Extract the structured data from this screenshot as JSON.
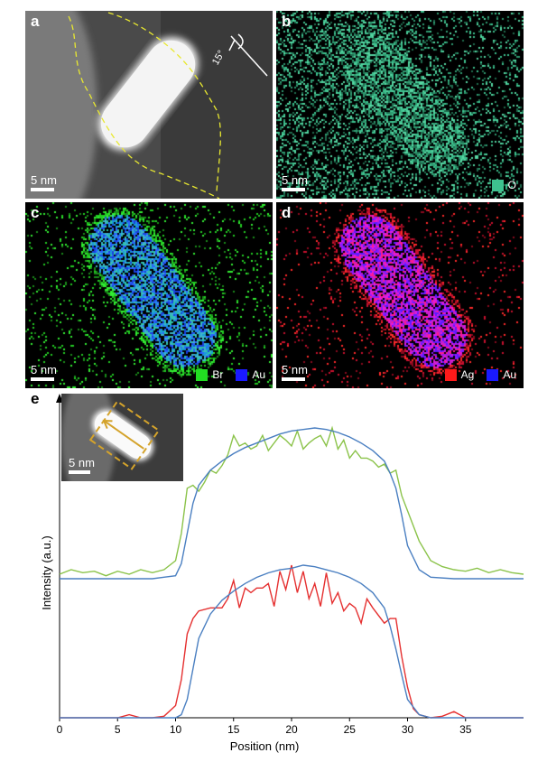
{
  "panels": [
    {
      "id": "a",
      "label": "a",
      "scale": "5 nm",
      "angle": "15°",
      "legend": []
    },
    {
      "id": "b",
      "label": "b",
      "scale": "5 nm",
      "legend": [
        {
          "name": "O",
          "color": "#3ec28f"
        }
      ]
    },
    {
      "id": "c",
      "label": "c",
      "scale": "5 nm",
      "legend": [
        {
          "name": "Br",
          "color": "#22dd22"
        },
        {
          "name": "Au",
          "color": "#1a1aff"
        }
      ]
    },
    {
      "id": "d",
      "label": "d",
      "scale": "5 nm",
      "legend": [
        {
          "name": "Ag",
          "color": "#ff1a1a"
        },
        {
          "name": "Au",
          "color": "#1a1aff"
        }
      ]
    }
  ],
  "panel_e": {
    "label": "e",
    "inset_scale": "5 nm"
  },
  "chart_data": {
    "type": "line",
    "xlabel": "Position (nm)",
    "ylabel": "Intensity (a.u.)",
    "xlim": [
      0,
      40
    ],
    "xticks": [
      0,
      5,
      10,
      15,
      20,
      25,
      30,
      35
    ],
    "series": [
      {
        "color": "#8bc34a",
        "offset": "upper",
        "x": [
          0,
          1,
          2,
          3,
          4,
          5,
          6,
          7,
          8,
          9,
          10,
          10.5,
          11,
          11.5,
          12,
          12.5,
          13,
          13.5,
          14,
          14.5,
          15,
          15.5,
          16,
          16.5,
          17,
          17.5,
          18,
          18.5,
          19,
          19.5,
          20,
          20.5,
          21,
          21.5,
          22,
          22.5,
          23,
          23.5,
          24,
          24.5,
          25,
          25.5,
          26,
          26.5,
          27,
          27.5,
          28,
          28.5,
          29,
          29.5,
          30,
          31,
          32,
          33,
          34,
          35,
          36,
          37,
          38,
          39,
          40
        ],
        "y": [
          0.03,
          0.06,
          0.04,
          0.05,
          0.02,
          0.05,
          0.03,
          0.06,
          0.04,
          0.06,
          0.12,
          0.3,
          0.6,
          0.62,
          0.58,
          0.64,
          0.72,
          0.7,
          0.75,
          0.82,
          0.95,
          0.88,
          0.9,
          0.86,
          0.88,
          0.95,
          0.85,
          0.9,
          0.95,
          0.92,
          0.88,
          0.98,
          0.86,
          0.9,
          0.93,
          0.95,
          0.88,
          1.0,
          0.86,
          0.92,
          0.8,
          0.85,
          0.8,
          0.8,
          0.78,
          0.74,
          0.76,
          0.7,
          0.72,
          0.55,
          0.45,
          0.25,
          0.12,
          0.08,
          0.06,
          0.05,
          0.07,
          0.04,
          0.06,
          0.04,
          0.03
        ]
      },
      {
        "color": "#4a7fc1",
        "offset": "upper",
        "x": [
          0,
          2,
          4,
          6,
          8,
          9,
          10,
          10.5,
          11,
          11.5,
          12,
          13,
          14,
          15,
          16,
          17,
          18,
          19,
          20,
          21,
          22,
          23,
          24,
          25,
          26,
          27,
          28,
          28.5,
          29,
          29.5,
          30,
          31,
          32,
          34,
          36,
          38,
          40
        ],
        "y": [
          0.0,
          0.0,
          0.0,
          0.0,
          0.0,
          0.01,
          0.02,
          0.1,
          0.3,
          0.5,
          0.62,
          0.72,
          0.78,
          0.83,
          0.87,
          0.9,
          0.93,
          0.96,
          0.98,
          0.99,
          1.0,
          0.99,
          0.97,
          0.94,
          0.9,
          0.85,
          0.78,
          0.7,
          0.6,
          0.42,
          0.22,
          0.06,
          0.01,
          0.0,
          0.0,
          0.0,
          0.0
        ]
      },
      {
        "color": "#e53030",
        "offset": "lower",
        "x": [
          0,
          2,
          4,
          5,
          6,
          7,
          8,
          9,
          10,
          10.5,
          11,
          11.5,
          12,
          13,
          14,
          14.5,
          15,
          15.5,
          16,
          16.5,
          17,
          17.5,
          18,
          18.5,
          19,
          19.5,
          20,
          20.5,
          21,
          21.5,
          22,
          22.5,
          23,
          23.5,
          24,
          24.5,
          25,
          25.5,
          26,
          26.5,
          27,
          28,
          28.5,
          29,
          29.5,
          30,
          30.5,
          31,
          32,
          33,
          34,
          35,
          36,
          38,
          40
        ],
        "y": [
          0.0,
          0.0,
          0.0,
          0.0,
          0.02,
          0.0,
          0.0,
          0.01,
          0.08,
          0.25,
          0.55,
          0.65,
          0.7,
          0.72,
          0.72,
          0.78,
          0.9,
          0.72,
          0.85,
          0.82,
          0.85,
          0.85,
          0.88,
          0.73,
          0.96,
          0.84,
          1.0,
          0.82,
          0.96,
          0.78,
          0.88,
          0.73,
          0.95,
          0.75,
          0.82,
          0.7,
          0.75,
          0.72,
          0.62,
          0.78,
          0.72,
          0.62,
          0.65,
          0.65,
          0.4,
          0.2,
          0.06,
          0.02,
          0.0,
          0.01,
          0.04,
          0.0,
          0.0,
          0.0,
          0.0
        ]
      },
      {
        "color": "#4a7fc1",
        "offset": "lower",
        "x": [
          0,
          2,
          4,
          6,
          8,
          9,
          10,
          10.5,
          11,
          11.5,
          12,
          13,
          14,
          15,
          16,
          17,
          18,
          19,
          20,
          21,
          22,
          23,
          24,
          25,
          26,
          27,
          28,
          28.5,
          29,
          29.5,
          30,
          31,
          32,
          34,
          36,
          38,
          40
        ],
        "y": [
          0.0,
          0.0,
          0.0,
          0.0,
          0.0,
          0.0,
          0.0,
          0.02,
          0.12,
          0.32,
          0.52,
          0.68,
          0.77,
          0.83,
          0.88,
          0.92,
          0.95,
          0.97,
          0.98,
          1.0,
          0.99,
          0.97,
          0.95,
          0.92,
          0.88,
          0.82,
          0.72,
          0.6,
          0.45,
          0.28,
          0.12,
          0.02,
          0.0,
          0.0,
          0.0,
          0.0,
          0.0
        ]
      }
    ]
  }
}
